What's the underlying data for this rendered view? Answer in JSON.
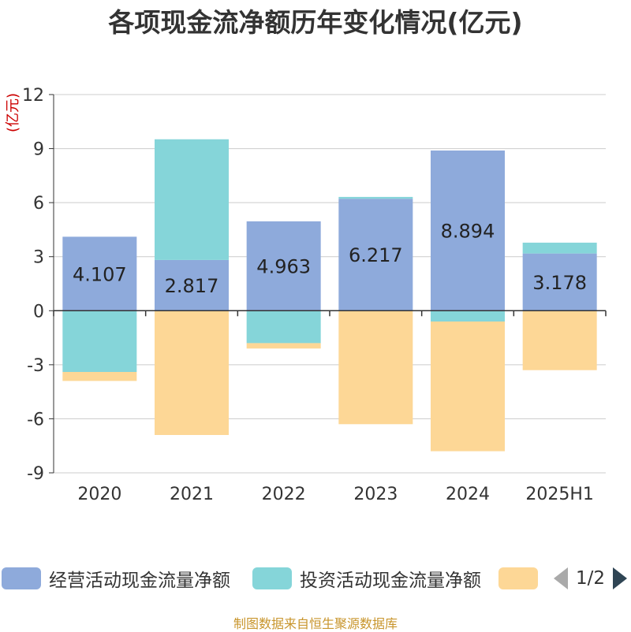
{
  "title": "各项现金流净额历年变化情况(亿元)",
  "unit_label": "(亿元)",
  "source": "制图数据来自恒生聚源数据库",
  "legend": {
    "items": [
      {
        "label": "经营活动现金流量净额",
        "color": "#8eaadb"
      },
      {
        "label": "投资活动现金流量净额",
        "color": "#85d5d9"
      },
      {
        "label": "",
        "color": "#fdd796"
      }
    ],
    "page": "1/2"
  },
  "chart_data": {
    "type": "bar",
    "stacked": true,
    "categories": [
      "2020",
      "2021",
      "2022",
      "2023",
      "2024",
      "2025H1"
    ],
    "ylim": [
      -9,
      12
    ],
    "yticks": [
      12,
      9,
      6,
      3,
      0,
      -3,
      -6,
      -9
    ],
    "grid": true,
    "legend_position": "bottom",
    "series": [
      {
        "name": "经营活动现金流量净额",
        "color": "#8eaadb",
        "values": [
          4.107,
          2.817,
          4.963,
          6.217,
          8.894,
          3.178
        ],
        "labels": [
          "4.107",
          "2.817",
          "4.963",
          "6.217",
          "8.894",
          "3.178"
        ]
      },
      {
        "name": "投资活动现金流量净额",
        "color": "#85d5d9",
        "values": [
          -3.4,
          6.7,
          -1.8,
          0.1,
          -0.6,
          0.6
        ]
      },
      {
        "color": "#fdd796",
        "values": [
          -0.5,
          -6.9,
          -0.3,
          -6.3,
          -7.2,
          -3.3
        ]
      }
    ]
  }
}
